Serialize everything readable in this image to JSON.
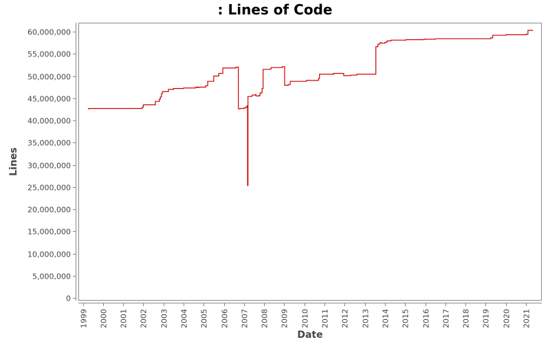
{
  "chart_data": {
    "type": "line",
    "title": ": Lines of Code",
    "xlabel": "Date",
    "ylabel": "Lines",
    "ylim": [
      0,
      60000000
    ],
    "xlim": [
      1999,
      2021.9
    ],
    "grid": false,
    "legend": null,
    "line_color": "#cc0000",
    "y_ticks": [
      0,
      5000000,
      10000000,
      15000000,
      20000000,
      25000000,
      30000000,
      35000000,
      40000000,
      45000000,
      50000000,
      55000000,
      60000000
    ],
    "y_tick_labels": [
      "0",
      "5,000,000",
      "10,000,000",
      "15,000,000",
      "20,000,000",
      "25,000,000",
      "30,000,000",
      "35,000,000",
      "40,000,000",
      "45,000,000",
      "50,000,000",
      "55,000,000",
      "60,000,000"
    ],
    "x_tick_labels": [
      "1999",
      "2000",
      "2001",
      "2002",
      "2003",
      "2004",
      "2005",
      "2006",
      "2007",
      "2008",
      "2009",
      "2010",
      "2011",
      "2012",
      "2013",
      "2014",
      "2015",
      "2016",
      "2017",
      "2018",
      "2019",
      "2020",
      "2021"
    ],
    "series": [
      {
        "name": "Lines",
        "step": true,
        "points": [
          [
            1999.25,
            42.6
          ],
          [
            1999.3,
            42.7
          ],
          [
            2001.85,
            42.7
          ],
          [
            2001.95,
            43.0
          ],
          [
            2002.0,
            43.5
          ],
          [
            2002.55,
            43.5
          ],
          [
            2002.6,
            44.3
          ],
          [
            2002.8,
            44.8
          ],
          [
            2002.85,
            45.3
          ],
          [
            2002.9,
            46.0
          ],
          [
            2002.95,
            46.5
          ],
          [
            2003.2,
            46.5
          ],
          [
            2003.25,
            47.0
          ],
          [
            2003.5,
            47.2
          ],
          [
            2004.0,
            47.3
          ],
          [
            2004.55,
            47.3
          ],
          [
            2004.6,
            47.5
          ],
          [
            2004.7,
            47.4
          ],
          [
            2004.75,
            47.5
          ],
          [
            2005.05,
            47.5
          ],
          [
            2005.1,
            47.8
          ],
          [
            2005.2,
            48.8
          ],
          [
            2005.45,
            48.8
          ],
          [
            2005.5,
            50.0
          ],
          [
            2005.65,
            50.0
          ],
          [
            2005.75,
            50.6
          ],
          [
            2005.95,
            51.8
          ],
          [
            2006.55,
            51.8
          ],
          [
            2006.6,
            52.0
          ],
          [
            2006.7,
            52.0
          ],
          [
            2006.72,
            42.6
          ],
          [
            2006.8,
            42.7
          ],
          [
            2007.0,
            42.8
          ],
          [
            2007.1,
            43.0
          ],
          [
            2007.15,
            43.3
          ],
          [
            2007.18,
            25.3
          ],
          [
            2007.2,
            45.4
          ],
          [
            2007.4,
            45.7
          ],
          [
            2007.55,
            45.8
          ],
          [
            2007.6,
            45.5
          ],
          [
            2007.75,
            45.6
          ],
          [
            2007.8,
            46.2
          ],
          [
            2007.9,
            47.2
          ],
          [
            2007.95,
            51.5
          ],
          [
            2008.3,
            51.6
          ],
          [
            2008.35,
            51.9
          ],
          [
            2008.9,
            52.1
          ],
          [
            2009.0,
            52.1
          ],
          [
            2009.02,
            47.9
          ],
          [
            2009.2,
            48.1
          ],
          [
            2009.3,
            48.8
          ],
          [
            2010.0,
            48.8
          ],
          [
            2010.1,
            49.0
          ],
          [
            2010.6,
            49.0
          ],
          [
            2010.7,
            49.4
          ],
          [
            2010.75,
            50.4
          ],
          [
            2011.4,
            50.4
          ],
          [
            2011.45,
            50.6
          ],
          [
            2011.9,
            50.6
          ],
          [
            2011.95,
            50.1
          ],
          [
            2012.3,
            50.2
          ],
          [
            2012.6,
            50.4
          ],
          [
            2013.5,
            50.4
          ],
          [
            2013.55,
            56.6
          ],
          [
            2013.65,
            57.2
          ],
          [
            2013.75,
            57.5
          ],
          [
            2013.85,
            57.4
          ],
          [
            2014.0,
            57.6
          ],
          [
            2014.1,
            57.9
          ],
          [
            2014.3,
            58.1
          ],
          [
            2015.0,
            58.1
          ],
          [
            2015.05,
            58.2
          ],
          [
            2015.9,
            58.2
          ],
          [
            2015.95,
            58.3
          ],
          [
            2016.5,
            58.4
          ],
          [
            2019.2,
            58.4
          ],
          [
            2019.25,
            58.6
          ],
          [
            2019.35,
            59.2
          ],
          [
            2020.0,
            59.3
          ],
          [
            2020.9,
            59.3
          ],
          [
            2021.0,
            59.4
          ],
          [
            2021.1,
            60.3
          ],
          [
            2021.35,
            60.3
          ]
        ]
      }
    ]
  }
}
